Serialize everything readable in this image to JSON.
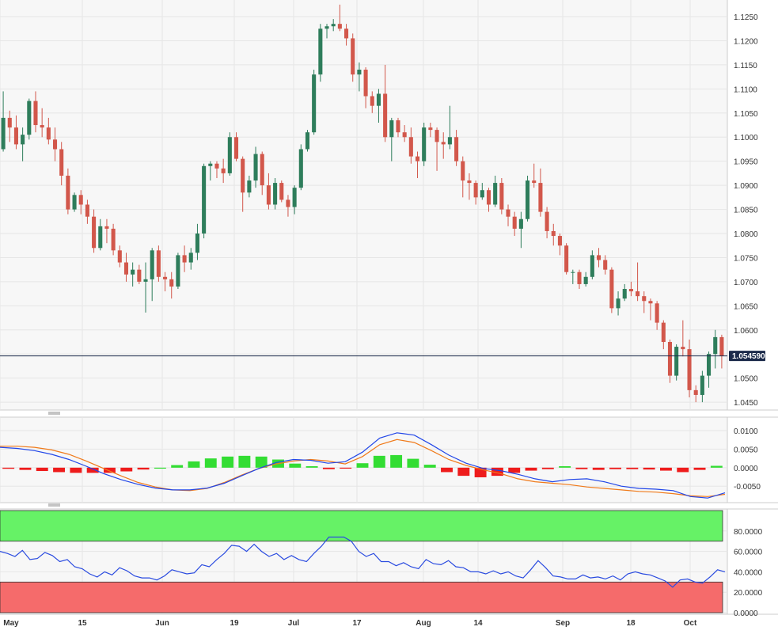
{
  "colors": {
    "up": "#2e7d5b",
    "down": "#d2574b",
    "grid": "#e6e6e6",
    "panel_bg": "#f7f7f7",
    "macd_line": "#2146e8",
    "signal_line": "#f07a1a",
    "hist_pos": "#33dd33",
    "hist_neg": "#ee1c1c",
    "rsi_line": "#2a4be0",
    "overbought_fill": "#66f266",
    "oversold_fill": "#f56b6b",
    "last_price_bg": "#1b2a4a"
  },
  "chart_data": [
    {
      "type": "candlestick",
      "name": "price",
      "y_ticks": [
        "1.1250",
        "1.1200",
        "1.1150",
        "1.1100",
        "1.1050",
        "1.1000",
        "1.0950",
        "1.0900",
        "1.0850",
        "1.0800",
        "1.0750",
        "1.0700",
        "1.0650",
        "1.0600",
        "1.0550",
        "1.0500",
        "1.0450"
      ],
      "ylim": [
        1.0437,
        1.1278
      ],
      "last_price": 1.0546,
      "last_price_label": "1.054590",
      "ohlc": [
        [
          1.0975,
          1.1095,
          1.097,
          1.104
        ],
        [
          1.104,
          1.1055,
          1.099,
          1.102
        ],
        [
          1.102,
          1.1045,
          1.0975,
          1.0985
        ],
        [
          1.0985,
          1.102,
          1.095,
          1.1005
        ],
        [
          1.1005,
          1.108,
          1.0995,
          1.1075
        ],
        [
          1.1075,
          1.1095,
          1.101,
          1.1025
        ],
        [
          1.1025,
          1.106,
          1.1,
          1.102
        ],
        [
          1.102,
          1.104,
          1.0985,
          1.0995
        ],
        [
          1.0995,
          1.102,
          1.095,
          1.0975
        ],
        [
          1.0975,
          1.099,
          1.09,
          1.092
        ],
        [
          1.092,
          1.0935,
          1.084,
          1.085
        ],
        [
          1.085,
          1.0885,
          1.0845,
          1.088
        ],
        [
          1.088,
          1.089,
          1.084,
          1.086
        ],
        [
          1.086,
          1.087,
          1.082,
          1.0835
        ],
        [
          1.0835,
          1.085,
          1.076,
          1.077
        ],
        [
          1.077,
          1.083,
          1.0765,
          1.0815
        ],
        [
          1.0815,
          1.083,
          1.078,
          1.081
        ],
        [
          1.081,
          1.082,
          1.0755,
          1.0765
        ],
        [
          1.0765,
          1.0775,
          1.073,
          1.074
        ],
        [
          1.074,
          1.076,
          1.07,
          1.0715
        ],
        [
          1.0715,
          1.074,
          1.069,
          1.0725
        ],
        [
          1.0725,
          1.0735,
          1.0695,
          1.07
        ],
        [
          1.07,
          1.074,
          1.0636,
          1.0705
        ],
        [
          1.0705,
          1.077,
          1.066,
          1.0765
        ],
        [
          1.0765,
          1.0775,
          1.07,
          1.071
        ],
        [
          1.071,
          1.072,
          1.068,
          1.0705
        ],
        [
          1.0705,
          1.072,
          1.0665,
          1.069
        ],
        [
          1.069,
          1.076,
          1.0685,
          1.0755
        ],
        [
          1.0755,
          1.0775,
          1.072,
          1.074
        ],
        [
          1.074,
          1.077,
          1.0725,
          1.076
        ],
        [
          1.076,
          1.082,
          1.0745,
          1.08
        ],
        [
          1.08,
          1.0945,
          1.079,
          1.094
        ],
        [
          1.094,
          1.095,
          1.091,
          1.0945
        ],
        [
          1.0945,
          1.095,
          1.0915,
          1.0935
        ],
        [
          1.0935,
          1.0955,
          1.0905,
          1.0925
        ],
        [
          1.0925,
          1.101,
          1.092,
          1.1
        ],
        [
          1.1,
          1.101,
          1.095,
          1.0955
        ],
        [
          1.0955,
          1.096,
          1.0845,
          1.0885
        ],
        [
          1.0885,
          1.092,
          1.0875,
          1.091
        ],
        [
          1.091,
          1.098,
          1.0895,
          1.0965
        ],
        [
          1.0965,
          1.097,
          1.088,
          1.09
        ],
        [
          1.09,
          1.0925,
          1.085,
          1.086
        ],
        [
          1.086,
          1.0915,
          1.085,
          1.0905
        ],
        [
          1.0905,
          1.091,
          1.0865,
          1.087
        ],
        [
          1.087,
          1.088,
          1.0835,
          1.0855
        ],
        [
          1.0855,
          1.09,
          1.084,
          1.0895
        ],
        [
          1.0895,
          1.0985,
          1.089,
          1.0975
        ],
        [
          1.0975,
          1.1015,
          1.097,
          1.101
        ],
        [
          1.101,
          1.114,
          1.1005,
          1.113
        ],
        [
          1.113,
          1.1235,
          1.1115,
          1.1225
        ],
        [
          1.1225,
          1.1235,
          1.1205,
          1.123
        ],
        [
          1.123,
          1.1245,
          1.122,
          1.1235
        ],
        [
          1.1235,
          1.1275,
          1.122,
          1.1225
        ],
        [
          1.1225,
          1.1235,
          1.119,
          1.1205
        ],
        [
          1.1205,
          1.1215,
          1.1115,
          1.113
        ],
        [
          1.113,
          1.1155,
          1.1095,
          1.114
        ],
        [
          1.114,
          1.1145,
          1.106,
          1.1085
        ],
        [
          1.1085,
          1.1095,
          1.105,
          1.1065
        ],
        [
          1.1065,
          1.11,
          1.103,
          1.109
        ],
        [
          1.109,
          1.115,
          1.099,
          1.1
        ],
        [
          1.1,
          1.104,
          1.095,
          1.1035
        ],
        [
          1.1035,
          1.104,
          1.1,
          1.101
        ],
        [
          1.101,
          1.1025,
          1.099,
          1.1
        ],
        [
          1.1,
          1.102,
          1.0945,
          1.096
        ],
        [
          1.096,
          1.097,
          1.0915,
          1.095
        ],
        [
          1.095,
          1.103,
          1.094,
          1.102
        ],
        [
          1.102,
          1.103,
          1.1,
          1.1015
        ],
        [
          1.1015,
          1.102,
          1.093,
          1.099
        ],
        [
          1.099,
          1.101,
          1.0955,
          1.0985
        ],
        [
          1.0985,
          1.1065,
          1.0975,
          1.1
        ],
        [
          1.1,
          1.1015,
          1.094,
          1.095
        ],
        [
          1.095,
          1.096,
          1.0875,
          1.091
        ],
        [
          1.091,
          1.0925,
          1.087,
          1.0905
        ],
        [
          1.0905,
          1.091,
          1.086,
          1.0875
        ],
        [
          1.0875,
          1.0905,
          1.087,
          1.089
        ],
        [
          1.089,
          1.0895,
          1.0845,
          1.086
        ],
        [
          1.086,
          1.092,
          1.0855,
          1.0905
        ],
        [
          1.0905,
          1.0915,
          1.084,
          1.085
        ],
        [
          1.085,
          1.086,
          1.0815,
          1.0835
        ],
        [
          1.0835,
          1.0845,
          1.0795,
          1.081
        ],
        [
          1.081,
          1.0845,
          1.077,
          1.083
        ],
        [
          1.083,
          1.092,
          1.0825,
          1.091
        ],
        [
          1.091,
          1.0945,
          1.0895,
          1.0905
        ],
        [
          1.0905,
          1.0935,
          1.0835,
          1.0845
        ],
        [
          1.0845,
          1.0855,
          1.079,
          1.0805
        ],
        [
          1.0805,
          1.082,
          1.0775,
          1.0795
        ],
        [
          1.0795,
          1.08,
          1.0755,
          1.0775
        ],
        [
          1.0775,
          1.078,
          1.0715,
          1.072
        ],
        [
          1.072,
          1.0725,
          1.0695,
          1.072
        ],
        [
          1.072,
          1.0725,
          1.0685,
          1.0695
        ],
        [
          1.0695,
          1.072,
          1.069,
          1.071
        ],
        [
          1.071,
          1.0765,
          1.0705,
          1.0755
        ],
        [
          1.0755,
          1.077,
          1.073,
          1.0745
        ],
        [
          1.0745,
          1.0755,
          1.0715,
          1.0725
        ],
        [
          1.0725,
          1.073,
          1.0635,
          1.0645
        ],
        [
          1.0645,
          1.068,
          1.063,
          1.0665
        ],
        [
          1.0665,
          1.0695,
          1.066,
          1.0685
        ],
        [
          1.0685,
          1.07,
          1.067,
          1.068
        ],
        [
          1.068,
          1.074,
          1.066,
          1.067
        ],
        [
          1.067,
          1.068,
          1.0635,
          1.066
        ],
        [
          1.066,
          1.0665,
          1.062,
          1.0655
        ],
        [
          1.0655,
          1.066,
          1.06,
          1.0615
        ],
        [
          1.0615,
          1.062,
          1.056,
          1.0575
        ],
        [
          1.0575,
          1.058,
          1.049,
          1.0505
        ],
        [
          1.0505,
          1.057,
          1.0495,
          1.0565
        ],
        [
          1.0565,
          1.062,
          1.0545,
          1.056
        ],
        [
          1.056,
          1.058,
          1.046,
          1.0475
        ],
        [
          1.0475,
          1.0485,
          1.045,
          1.0465
        ],
        [
          1.0465,
          1.0515,
          1.045,
          1.0505
        ],
        [
          1.0505,
          1.0555,
          1.048,
          1.055
        ],
        [
          1.055,
          1.06,
          1.052,
          1.0585
        ],
        [
          1.0585,
          1.059,
          1.052,
          1.0546
        ]
      ]
    },
    {
      "type": "macd",
      "name": "macd",
      "y_ticks": [
        "0.0100",
        "0.0050",
        "0.0000",
        "-0.0050"
      ],
      "ylim": [
        -0.0088,
        0.013
      ],
      "macd_line": [
        0.0055,
        0.0052,
        0.0046,
        0.0036,
        0.0022,
        0.0004,
        -0.0016,
        -0.0032,
        -0.0045,
        -0.0055,
        -0.006,
        -0.006,
        -0.0055,
        -0.0042,
        -0.0022,
        -0.0002,
        0.0014,
        0.0022,
        0.002,
        0.0012,
        0.0016,
        0.0042,
        0.008,
        0.0094,
        0.0088,
        0.0062,
        0.0034,
        0.0012,
        -0.0002,
        -0.0008,
        -0.0018,
        -0.003,
        -0.0038,
        -0.0032,
        -0.003,
        -0.0038,
        -0.005,
        -0.0056,
        -0.0058,
        -0.0062,
        -0.0078,
        -0.0082,
        -0.0068
      ],
      "signal_line": [
        0.0058,
        0.0058,
        0.0055,
        0.0048,
        0.0036,
        0.0018,
        -0.0002,
        -0.0022,
        -0.004,
        -0.0052,
        -0.006,
        -0.0062,
        -0.0056,
        -0.004,
        -0.002,
        -0.0002,
        0.001,
        0.0018,
        0.0022,
        0.0018,
        0.001,
        0.003,
        0.0062,
        0.0076,
        0.0068,
        0.0046,
        0.0022,
        0.0006,
        -0.0006,
        -0.0016,
        -0.003,
        -0.0038,
        -0.0042,
        -0.0046,
        -0.0052,
        -0.0056,
        -0.006,
        -0.0064,
        -0.0066,
        -0.007,
        -0.0076,
        -0.0078,
        -0.0072
      ],
      "histogram": [
        -0.0003,
        -0.0006,
        -0.0009,
        -0.0012,
        -0.0014,
        -0.0014,
        -0.0014,
        -0.001,
        -0.0005,
        0.0,
        0.0007,
        0.0017,
        0.0025,
        0.003,
        0.0032,
        0.003,
        0.0022,
        0.0011,
        0.0004,
        -0.0004,
        -0.0002,
        0.0012,
        0.0032,
        0.0034,
        0.0024,
        0.0008,
        -0.0012,
        -0.0022,
        -0.0026,
        -0.0022,
        -0.0014,
        -0.0008,
        -0.0004,
        0.0004,
        -0.0004,
        -0.0006,
        -0.0004,
        -0.0004,
        -0.0005,
        -0.0008,
        -0.0012,
        -0.0006,
        0.0005
      ]
    },
    {
      "type": "rsi",
      "name": "rsi",
      "y_ticks": [
        "80.0000",
        "60.0000",
        "40.0000",
        "20.0000",
        "0.0000"
      ],
      "ylim": [
        0,
        100
      ],
      "overbought": [
        70,
        100
      ],
      "oversold": [
        0,
        30
      ],
      "values": [
        60,
        58,
        55,
        61,
        52,
        53,
        59,
        56,
        50,
        52,
        45,
        43,
        38,
        35,
        40,
        37,
        44,
        41,
        36,
        34,
        34,
        32,
        36,
        42,
        40,
        38,
        39,
        47,
        45,
        52,
        58,
        66,
        65,
        60,
        67,
        60,
        55,
        58,
        52,
        56,
        52,
        50,
        58,
        65,
        74,
        74,
        74,
        70,
        60,
        55,
        58,
        50,
        50,
        46,
        49,
        45,
        43,
        52,
        48,
        47,
        51,
        45,
        44,
        40,
        40,
        38,
        41,
        38,
        40,
        36,
        34,
        42,
        51,
        44,
        36,
        35,
        33,
        33,
        37,
        34,
        35,
        33,
        36,
        32,
        38,
        40,
        38,
        37,
        34,
        31,
        25,
        32,
        33,
        30,
        29,
        35,
        42,
        40
      ]
    }
  ],
  "x_axis": {
    "labels": [
      "May",
      "15",
      "Jun",
      "19",
      "Jul",
      "17",
      "Aug",
      "14",
      "Sep",
      "18",
      "Oct"
    ]
  }
}
